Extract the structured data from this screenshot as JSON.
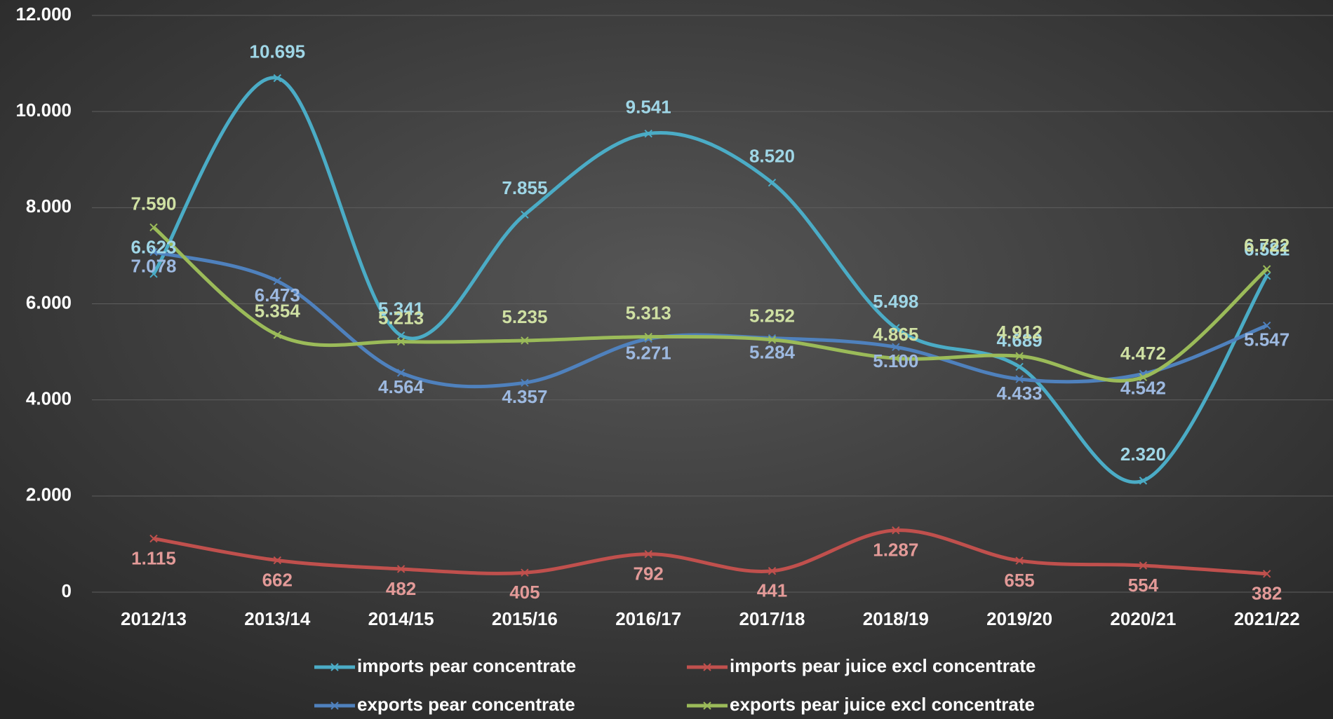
{
  "chart_data": {
    "type": "line",
    "categories": [
      "2012/13",
      "2013/14",
      "2014/15",
      "2015/16",
      "2016/17",
      "2017/18",
      "2018/19",
      "2019/20",
      "2020/21",
      "2021/22"
    ],
    "series": [
      {
        "name": "imports pear concentrate",
        "color": "#4bacc6",
        "label_color": "#9fd6e6",
        "values": [
          6623,
          10695,
          5341,
          7855,
          9541,
          8520,
          5498,
          4689,
          2320,
          6581
        ],
        "value_labels": [
          "6.623",
          "10.695",
          "5.341",
          "7.855",
          "9.541",
          "8.520",
          "5.498",
          "4.689",
          "2.320",
          "6.581"
        ]
      },
      {
        "name": "imports pear juice excl concentrate",
        "color": "#c0504d",
        "label_color": "#e39a98",
        "values": [
          1115,
          662,
          482,
          405,
          792,
          441,
          1287,
          655,
          554,
          382
        ],
        "value_labels": [
          "1.115",
          "662",
          "482",
          "405",
          "792",
          "441",
          "1.287",
          "655",
          "554",
          "382"
        ]
      },
      {
        "name": "exports pear concentrate",
        "color": "#4f81bd",
        "label_color": "#9db9e0",
        "values": [
          7078,
          6473,
          4564,
          4357,
          5271,
          5284,
          5100,
          4433,
          4542,
          5547
        ],
        "value_labels": [
          "7.078",
          "6.473",
          "4.564",
          "4.357",
          "5.271",
          "5.284",
          "5.100",
          "4.433",
          "4.542",
          "5.547"
        ]
      },
      {
        "name": "exports pear juice excl concentrate",
        "color": "#9bbb59",
        "label_color": "#cfe0a3",
        "values": [
          7590,
          5354,
          5213,
          5235,
          5313,
          5252,
          4865,
          4912,
          4472,
          6722
        ],
        "value_labels": [
          "7.590",
          "5.354",
          "5.213",
          "5.235",
          "5.313",
          "5.252",
          "4.865",
          "4.912",
          "4.472",
          "6.722"
        ]
      }
    ],
    "ylim": [
      0,
      12000
    ],
    "yticks": [
      0,
      {
        "value": 2000,
        "label": "2.000"
      },
      {
        "value": 4000,
        "label": "4.000"
      },
      {
        "value": 6000,
        "label": "6.000"
      },
      {
        "value": 8000,
        "label": "8.000"
      },
      {
        "value": 10000,
        "label": "10.000"
      },
      {
        "value": 12000,
        "label": "12.000"
      }
    ],
    "grid": true,
    "legend": "bottom",
    "smooth": true
  }
}
